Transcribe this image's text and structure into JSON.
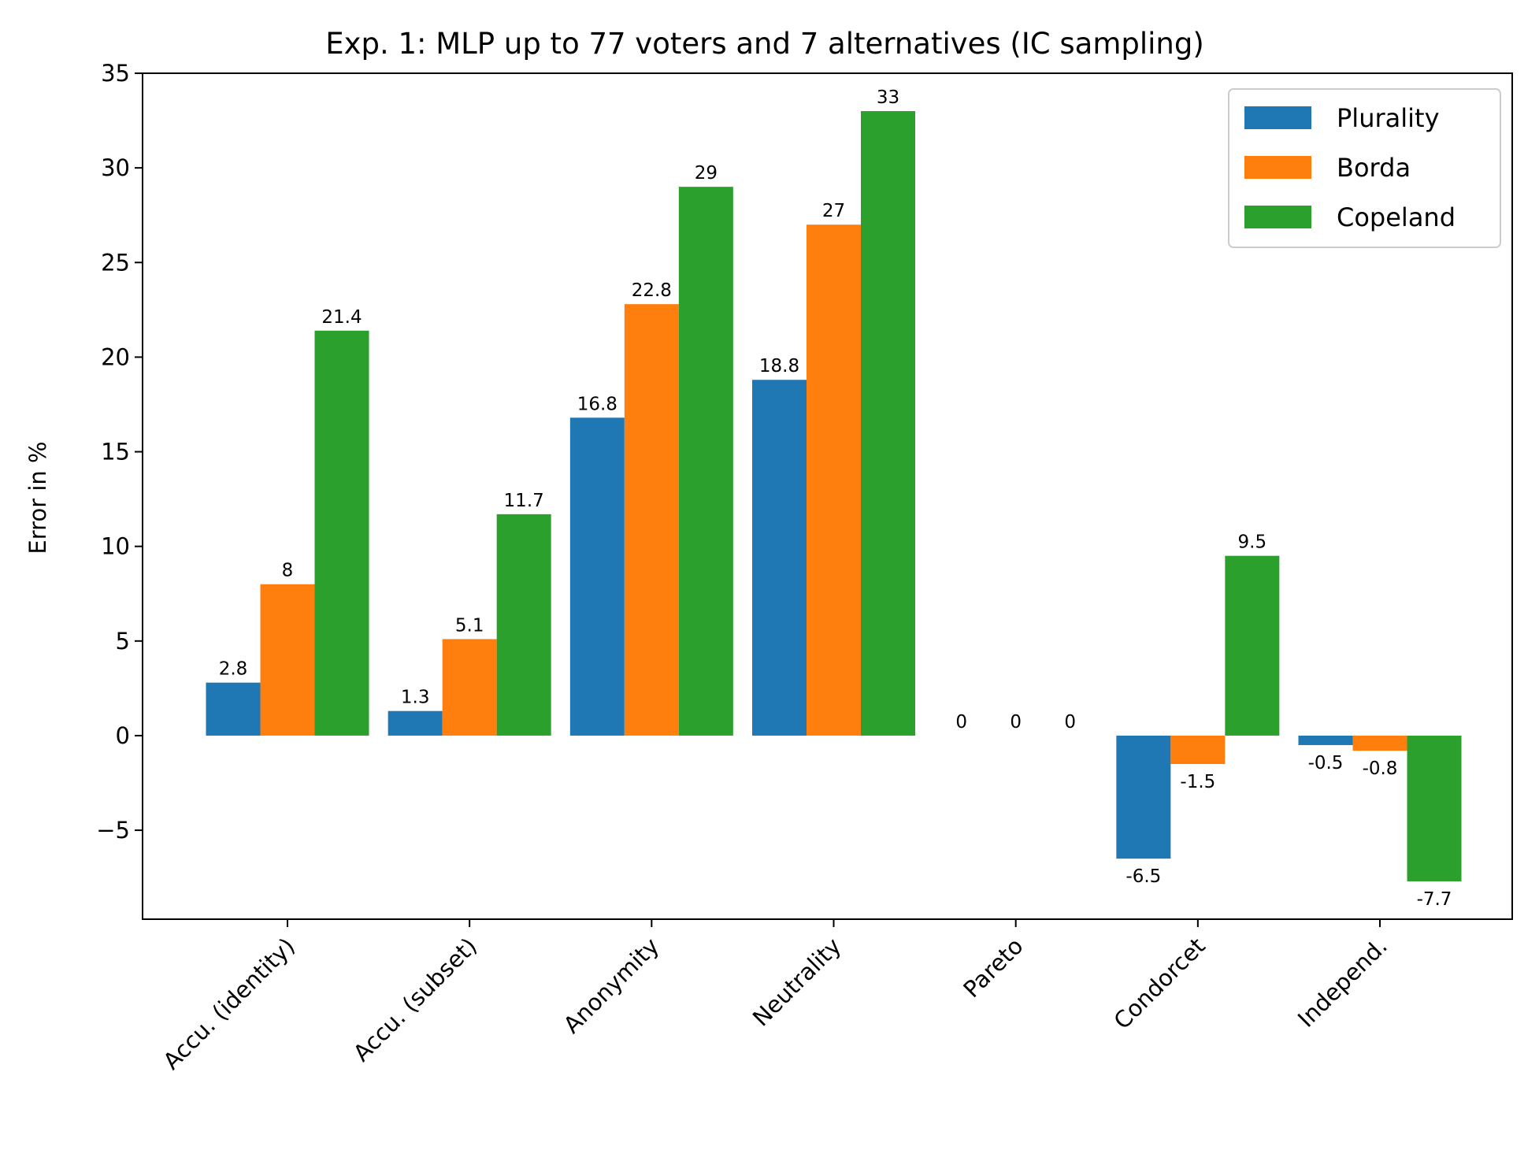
{
  "chart_data": {
    "type": "bar",
    "title": "Exp. 1: MLP up to 77 voters and 7 alternatives (IC sampling)",
    "xlabel": "",
    "ylabel": "Error in %",
    "ylim": [
      -9.7,
      35
    ],
    "yticks": [
      -5,
      0,
      5,
      10,
      15,
      20,
      25,
      30,
      35
    ],
    "ytick_labels": [
      "−5",
      "0",
      "5",
      "10",
      "15",
      "20",
      "25",
      "30",
      "35"
    ],
    "categories": [
      "Accu. (identity)",
      "Accu. (subset)",
      "Anonymity",
      "Neutrality",
      "Pareto",
      "Condorcet",
      "Independ."
    ],
    "series": [
      {
        "name": "Plurality",
        "color": "#1f77b4",
        "values": [
          2.8,
          1.3,
          16.8,
          18.8,
          0,
          -6.5,
          -0.5
        ],
        "labels": [
          "2.8",
          "1.3",
          "16.8",
          "18.8",
          "0",
          "-6.5",
          "-0.5"
        ]
      },
      {
        "name": "Borda",
        "color": "#ff7f0e",
        "values": [
          8,
          5.1,
          22.8,
          27,
          0,
          -1.5,
          -0.8
        ],
        "labels": [
          "8",
          "5.1",
          "22.8",
          "27",
          "0",
          "-1.5",
          "-0.8"
        ]
      },
      {
        "name": "Copeland",
        "color": "#2ca02c",
        "values": [
          21.4,
          11.7,
          29,
          33,
          0,
          9.5,
          -7.7
        ],
        "labels": [
          "21.4",
          "11.7",
          "29",
          "33",
          "0",
          "9.5",
          "-7.7"
        ]
      }
    ],
    "legend_position": "top-right",
    "grid": false
  }
}
